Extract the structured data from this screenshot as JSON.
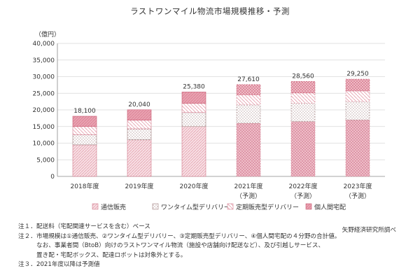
{
  "title": "ラストワンマイル物流市場規模推移・予測",
  "source": "矢野経済研究所調べ",
  "notes": [
    {
      "num": "注１．",
      "lines": [
        "配送料（宅配関連サービスを含む）ベース"
      ]
    },
    {
      "num": "注２．",
      "lines": [
        "市場規模は①通信販売、②ワンタイム型デリバリー、③定期販売型デリバリー、④個人間宅配の４分野の合計値。",
        "なお、事業者間（BtoB）向けのラストワンマイル物流（施設や店舗向け配送など）、及び引越しサービス、",
        "置き配・宅配ボックス、配達ロボットは対象外とする。"
      ]
    },
    {
      "num": "注３．",
      "lines": [
        "2021年度以降は予測値"
      ]
    }
  ],
  "chart_data": {
    "type": "bar",
    "stacked": true,
    "unit": "（億円）",
    "ylim": [
      0,
      40000
    ],
    "yticks": [
      0,
      5000,
      10000,
      15000,
      20000,
      25000,
      30000,
      35000,
      40000
    ],
    "ytick_labels": [
      "0",
      "5,000",
      "10,000",
      "15,000",
      "20,000",
      "25,000",
      "30,000",
      "35,000",
      "40,000"
    ],
    "categories": [
      {
        "line1": "2018年度",
        "line2": ""
      },
      {
        "line1": "2019年度",
        "line2": ""
      },
      {
        "line1": "2020年度",
        "line2": ""
      },
      {
        "line1": "2021年度",
        "line2": "（予測）"
      },
      {
        "line1": "2022年度",
        "line2": "（予測）"
      },
      {
        "line1": "2023年度",
        "line2": "（予測）"
      }
    ],
    "forecast_from_index": 3,
    "totals": [
      "18,100",
      "20,040",
      "25,380",
      "27,610",
      "28,560",
      "29,250"
    ],
    "series": [
      {
        "name": "通信販売",
        "color": "#e08a9a",
        "values": [
          9500,
          11000,
          15000,
          16000,
          16500,
          17000
        ]
      },
      {
        "name": "ワンタイム型デリバリー",
        "color": "#c0a0a0",
        "values": [
          3000,
          3300,
          4200,
          5500,
          5500,
          5500
        ]
      },
      {
        "name": "定期販売型デリバリー",
        "color": "#e08a9a",
        "values": [
          2500,
          2600,
          2800,
          3000,
          3100,
          3200
        ]
      },
      {
        "name": "個人間宅配",
        "color": "#e08a9a",
        "values": [
          3100,
          3140,
          3380,
          3110,
          3460,
          3550
        ]
      }
    ],
    "legend_position": "bottom",
    "grid": true
  }
}
